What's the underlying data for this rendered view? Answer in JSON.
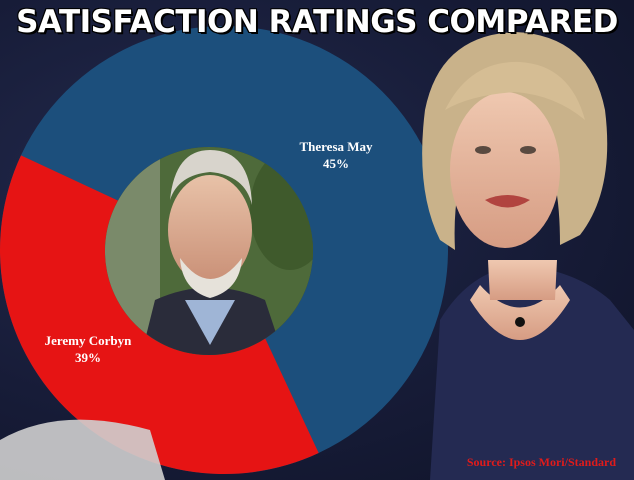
{
  "title": "SATISFACTION RATINGS COMPARED",
  "source": "Source: Ipsos Mori/Standard",
  "colors": {
    "may": "#1c4f7c",
    "corbyn": "#e61414",
    "background": "#141a33"
  },
  "chart_data": {
    "type": "pie",
    "donut": true,
    "title": "SATISFACTION RATINGS COMPARED",
    "slices": [
      {
        "label": "Theresa May",
        "value_label": "45%",
        "value": 45,
        "color": "#1c4f7c"
      },
      {
        "label": "Jeremy Corbyn",
        "value_label": "39%",
        "value": 39,
        "color": "#e61414"
      }
    ],
    "legend": "none"
  },
  "images": {
    "center_photo": "portrait-photo",
    "right_photo": "portrait-photo"
  }
}
